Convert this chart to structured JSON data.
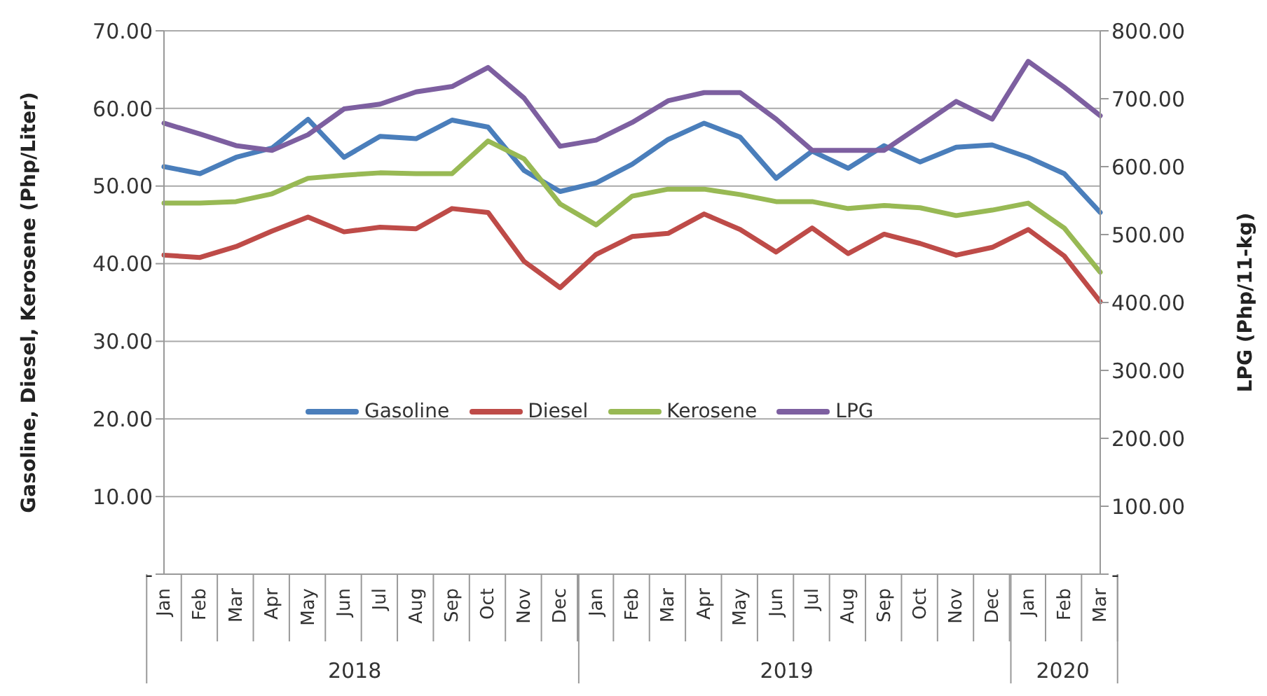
{
  "chart_data": {
    "type": "line",
    "ylabel": "Gasoline, Diesel, Kerosene (Php/Liter)",
    "y2label": "LPG (Php/11-kg)",
    "categories": [
      "Jan",
      "Feb",
      "Mar",
      "Apr",
      "May",
      "Jun",
      "Jul",
      "Aug",
      "Sep",
      "Oct",
      "Nov",
      "Dec",
      "Jan",
      "Feb",
      "Mar",
      "Apr",
      "May",
      "Jun",
      "Jul",
      "Aug",
      "Sep",
      "Oct",
      "Nov",
      "Dec",
      "Jan",
      "Feb",
      "Mar"
    ],
    "annotations": [
      "2018",
      "2019",
      "2020"
    ],
    "series": [
      {
        "name": "Gasoline",
        "color": "#4a7ebb",
        "values": [
          52.5,
          51.6,
          53.7,
          54.9,
          58.6,
          53.7,
          56.4,
          56.1,
          58.5,
          57.6,
          52.0,
          49.3,
          50.4,
          52.8,
          56.0,
          58.1,
          56.3,
          51.0,
          54.5,
          52.3,
          55.2,
          53.1,
          55.0,
          55.3,
          53.7,
          51.6,
          46.6
        ]
      },
      {
        "name": "Diesel",
        "color": "#be4b48",
        "values": [
          41.1,
          40.8,
          42.2,
          44.2,
          46.0,
          44.1,
          44.7,
          44.5,
          47.1,
          46.6,
          40.3,
          36.9,
          41.2,
          43.5,
          43.9,
          46.4,
          44.4,
          41.5,
          44.6,
          41.3,
          43.8,
          42.6,
          41.1,
          42.1,
          44.4,
          41.0,
          35.1
        ]
      },
      {
        "name": "Kerosene",
        "color": "#98b954",
        "values": [
          47.8,
          47.8,
          48.0,
          49.0,
          51.0,
          51.4,
          51.7,
          51.6,
          51.6,
          55.8,
          53.5,
          47.7,
          45.0,
          48.7,
          49.6,
          49.6,
          48.9,
          48.0,
          48.0,
          47.1,
          47.5,
          47.2,
          46.2,
          46.9,
          47.8,
          44.6,
          38.9
        ]
      },
      {
        "name": "LPG",
        "color": "#7d5fa0",
        "axis": "y2",
        "values": [
          664,
          648,
          631,
          624,
          647,
          685,
          692,
          710,
          718,
          746,
          701,
          630,
          639,
          665,
          697,
          709,
          709,
          670,
          624,
          624,
          624,
          660,
          696,
          670,
          755,
          717,
          675
        ]
      }
    ],
    "ylim": [
      0,
      70
    ],
    "yticks": [
      {
        "value": 0,
        "label": "-"
      },
      {
        "value": 10,
        "label": "10.00"
      },
      {
        "value": 20,
        "label": "20.00"
      },
      {
        "value": 30,
        "label": "30.00"
      },
      {
        "value": 40,
        "label": "40.00"
      },
      {
        "value": 50,
        "label": "50.00"
      },
      {
        "value": 60,
        "label": "60.00"
      },
      {
        "value": 70,
        "label": "70.00"
      }
    ],
    "y2lim": [
      0,
      800
    ],
    "y2ticks": [
      {
        "value": 0,
        "label": "-"
      },
      {
        "value": 100,
        "label": "100.00"
      },
      {
        "value": 200,
        "label": "200.00"
      },
      {
        "value": 300,
        "label": "300.00"
      },
      {
        "value": 400,
        "label": "400.00"
      },
      {
        "value": 500,
        "label": "500.00"
      },
      {
        "value": 600,
        "label": "600.00"
      },
      {
        "value": 700,
        "label": "700.00"
      },
      {
        "value": 800,
        "label": "800.00"
      }
    ],
    "grid": "y",
    "legend": "center",
    "marker": "none",
    "line_style": "solid"
  }
}
